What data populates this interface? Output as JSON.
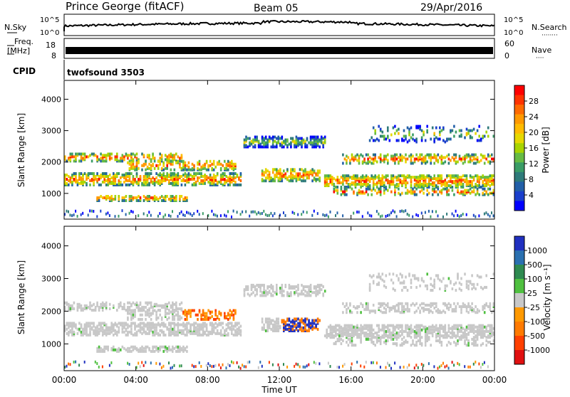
{
  "header": {
    "station": "Prince George (fitACF)",
    "beam": "Beam 05",
    "date": "29/Apr/2016"
  },
  "strip_labels": {
    "nsky": "N.Sky",
    "nsearch": "N.Search",
    "nsearch_dots": "········",
    "freq_line1": "Freq.",
    "freq_line2": "[MHz]",
    "nave": "Nave",
    "nave_dots": "····",
    "cpid": "CPID",
    "cpid_value": "twofsound 3503"
  },
  "chart_data": [
    {
      "type": "line",
      "name": "N.Sky",
      "ylabel_left": [
        "10^5",
        "10^0"
      ],
      "ylabel_right": [
        "10^5",
        "10^0"
      ],
      "note": "noise trace"
    },
    {
      "type": "bar",
      "name": "Freq",
      "ytick_left": [
        "18",
        "8"
      ],
      "ytick_right": [
        "60",
        "0"
      ]
    },
    {
      "type": "heatmap",
      "title": "",
      "xlabel": "",
      "ylabel": "Slant Range [km]",
      "yticks": [
        "4000",
        "3000",
        "2000",
        "1000"
      ],
      "ylim": [
        180,
        4600
      ],
      "xlim": [
        0,
        24
      ],
      "colorbar": {
        "label": "Power [dB]",
        "ticks": [
          "28",
          "24",
          "20",
          "16",
          "12",
          "8",
          "4"
        ],
        "colors": [
          "#ff0000",
          "#ff3300",
          "#ff6a00",
          "#ff9900",
          "#ffbb00",
          "#e6d800",
          "#a8d400",
          "#66bb44",
          "#3a9c66",
          "#2e7a7a",
          "#225fa8",
          "#1a3fcc",
          "#0000ff"
        ]
      }
    },
    {
      "type": "heatmap",
      "title": "",
      "xlabel": "Time UT",
      "ylabel": "Slant Range [km]",
      "yticks": [
        "4000",
        "3000",
        "2000",
        "1000"
      ],
      "ylim": [
        180,
        4600
      ],
      "xlim": [
        0,
        24
      ],
      "xticks": [
        "00:00",
        "04:00",
        "08:00",
        "12:00",
        "16:00",
        "20:00",
        "00:00"
      ],
      "colorbar": {
        "label": "Velocity [m s⁻¹]",
        "ticks": [
          "1000",
          "500",
          "100",
          "25",
          "-25",
          "-100",
          "-500",
          "-1000"
        ],
        "colors": [
          "#2030c0",
          "#2a70b0",
          "#2e8a50",
          "#4fc040",
          "#c8c8c8",
          "#ff9900",
          "#ff7a00",
          "#ff4000",
          "#e01010"
        ]
      }
    }
  ]
}
